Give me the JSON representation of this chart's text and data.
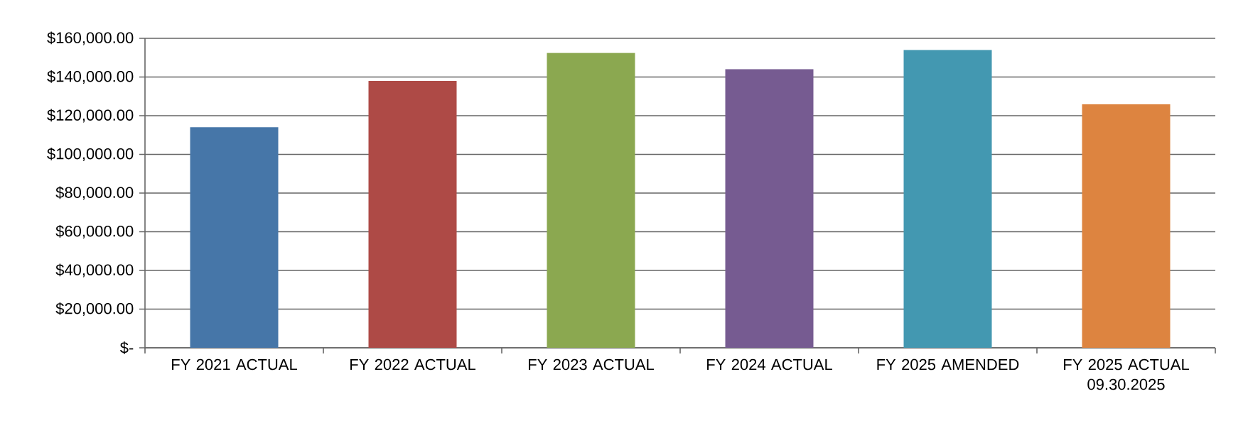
{
  "chart_data": {
    "type": "bar",
    "categories": [
      "FY 2021 ACTUAL",
      "FY 2022 ACTUAL",
      "FY 2023 ACTUAL",
      "FY 2024 ACTUAL",
      "FY 2025 AMENDED",
      "FY 2025 ACTUAL 09.30.2025"
    ],
    "values": [
      114000,
      138000,
      152500,
      144000,
      154000,
      126000
    ],
    "colors": [
      "#4676a8",
      "#ae4a46",
      "#8ba850",
      "#765b91",
      "#4398b1",
      "#dd8440"
    ],
    "ylim": [
      0,
      160000
    ],
    "yticks": [
      {
        "value": 0,
        "label": "$-"
      },
      {
        "value": 20000,
        "label": "$20,000.00"
      },
      {
        "value": 40000,
        "label": "$40,000.00"
      },
      {
        "value": 60000,
        "label": "$60,000.00"
      },
      {
        "value": 80000,
        "label": "$80,000.00"
      },
      {
        "value": 100000,
        "label": "$100,000.00"
      },
      {
        "value": 120000,
        "label": "$120,000.00"
      },
      {
        "value": 140000,
        "label": "$140,000.00"
      },
      {
        "value": 160000,
        "label": "$160,000.00"
      }
    ],
    "grid": "y"
  }
}
